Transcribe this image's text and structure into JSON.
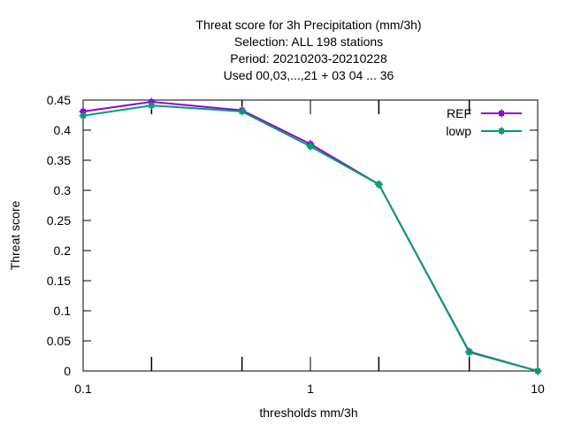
{
  "chart_data": {
    "type": "line",
    "title_lines": [
      "Threat score  for 3h Precipitation (mm/3h)",
      "Selection: ALL     198 stations",
      "Period: 20210203-20210228",
      "Used  00,03,...,21  + 03 04 ... 36"
    ],
    "xlabel": "thresholds mm/3h",
    "ylabel": "Threat score",
    "xscale": "log",
    "xlim": [
      0.1,
      10
    ],
    "ylim": [
      0,
      0.45
    ],
    "xticks": [
      0.1,
      1,
      10
    ],
    "xtick_labels": [
      "0.1",
      "1",
      "10"
    ],
    "xminor_ticks": [
      0.2,
      0.5,
      2,
      5
    ],
    "yticks": [
      0,
      0.05,
      0.1,
      0.15,
      0.2,
      0.25,
      0.3,
      0.35,
      0.4,
      0.45
    ],
    "ytick_labels": [
      "0",
      "0.05",
      "0.1",
      "0.15",
      "0.2",
      "0.25",
      "0.3",
      "0.35",
      "0.4",
      "0.45"
    ],
    "grid": false,
    "legend_position": "top-right",
    "x": [
      0.1,
      0.2,
      0.5,
      1,
      2,
      5,
      10
    ],
    "series": [
      {
        "name": "REF",
        "color": "#9400d3",
        "values": [
          0.431,
          0.447,
          0.433,
          0.377,
          0.31,
          0.032,
          0.0
        ]
      },
      {
        "name": "lowp",
        "color": "#009e73",
        "values": [
          0.424,
          0.441,
          0.431,
          0.373,
          0.31,
          0.031,
          0.0
        ]
      }
    ]
  }
}
